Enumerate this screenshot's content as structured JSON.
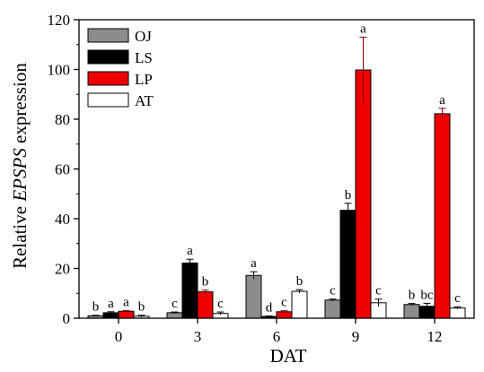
{
  "chart_data": {
    "type": "bar",
    "xlabel": "DAT",
    "ylabel_prefix": "Relative ",
    "ylabel_gene": "EPSPS",
    "ylabel_suffix": " expression",
    "categories": [
      "0",
      "3",
      "6",
      "9",
      "12"
    ],
    "ylim": [
      0,
      120
    ],
    "yticks": [
      0,
      20,
      40,
      60,
      80,
      100,
      120
    ],
    "legend_position": "top-left",
    "series": [
      {
        "name": "OJ",
        "color": "#8c8c8c",
        "values": [
          1.0,
          2.2,
          17.2,
          7.3,
          5.5
        ],
        "errors": [
          0.2,
          0.3,
          1.5,
          0.4,
          0.4
        ],
        "labels": [
          "b",
          "c",
          "a",
          "c",
          "b"
        ]
      },
      {
        "name": "LS",
        "color": "#000000",
        "values": [
          2.2,
          22.2,
          0.7,
          43.4,
          4.8
        ],
        "errors": [
          0.4,
          1.5,
          0.2,
          2.8,
          1.2
        ],
        "labels": [
          "a",
          "a",
          "d",
          "b",
          "bc"
        ]
      },
      {
        "name": "LP",
        "color": "#ee0000",
        "values": [
          2.8,
          10.6,
          2.6,
          99.8,
          82.2
        ],
        "errors": [
          0.3,
          0.7,
          0.4,
          13.2,
          2.2
        ],
        "labels": [
          "a",
          "b",
          "c",
          "a",
          "a"
        ]
      },
      {
        "name": "AT",
        "color": "#ffffff",
        "values": [
          0.8,
          1.9,
          10.8,
          6.2,
          4.1
        ],
        "errors": [
          0.4,
          0.6,
          0.7,
          1.5,
          0.5
        ],
        "labels": [
          "b",
          "c",
          "b",
          "c",
          "c"
        ]
      }
    ]
  }
}
